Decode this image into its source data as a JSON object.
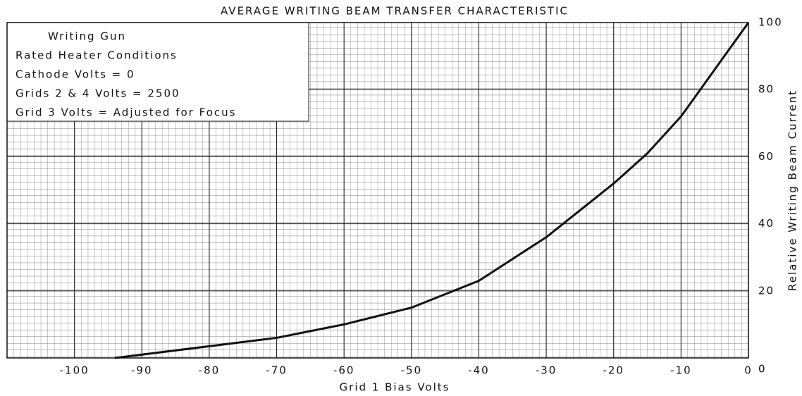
{
  "chart_data": {
    "type": "line",
    "title": "AVERAGE WRITING BEAM TRANSFER CHARACTERISTIC",
    "xlabel": "Grid 1 Bias Volts",
    "ylabel": "Relative Writing Beam Current",
    "annotations": [
      "Writing Gun",
      "Rated Heater Conditions",
      "Cathode Volts = 0",
      "Grids 2 & 4 Volts = 2500",
      "Grid 3 Volts = Adjusted for Focus"
    ],
    "x": [
      -94,
      -90,
      -80,
      -70,
      -60,
      -50,
      -40,
      -30,
      -20,
      -15,
      -10,
      -5,
      0
    ],
    "series": [
      {
        "name": "Writing beam current",
        "color": "#111111",
        "values": [
          0,
          1,
          3.5,
          6,
          10,
          15,
          23,
          36,
          52,
          61,
          72,
          86,
          100
        ]
      }
    ],
    "xlim": [
      -110,
      0
    ],
    "xticks": [
      -100,
      -90,
      -80,
      -70,
      -60,
      -50,
      -40,
      -30,
      -20,
      -10,
      0
    ],
    "ylim": [
      0,
      100
    ],
    "yticks": [
      0,
      20,
      40,
      60,
      80,
      100
    ],
    "grid": true
  }
}
